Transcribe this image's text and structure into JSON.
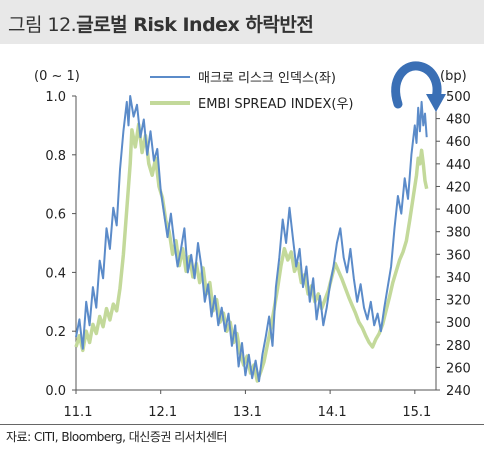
{
  "header": {
    "title_prefix": "그림 12.",
    "title_main": "글로벌 Risk Index 하락반전"
  },
  "source": "자료: CITI, Bloomberg, 대신증권 리서치센터",
  "colors": {
    "left_series": "#5b8bc9",
    "right_series": "#c3d99a",
    "arrow": "#3a6fb5"
  },
  "chart_data": {
    "type": "line",
    "left_unit": "(0 ~ 1)",
    "right_unit": "(bp)",
    "x_ticks": [
      "11.1",
      "12.1",
      "13.1",
      "14.1",
      "15.1"
    ],
    "x_range": [
      2011.0,
      2015.25
    ],
    "y_left": {
      "min": 0.0,
      "max": 1.0,
      "ticks": [
        "0.0",
        "0.2",
        "0.4",
        "0.6",
        "0.8",
        "1.0"
      ]
    },
    "y_right": {
      "min": 240,
      "max": 500,
      "ticks": [
        "240",
        "260",
        "280",
        "300",
        "320",
        "340",
        "360",
        "380",
        "400",
        "420",
        "440",
        "460",
        "480",
        "500"
      ]
    },
    "grid": false,
    "legend_position": "top",
    "annotation": "curved arrow pointing downward at top-right",
    "series": [
      {
        "name": "매크로 리스크 인덱스(좌)",
        "axis": "left",
        "points": [
          [
            2011.0,
            0.18
          ],
          [
            2011.04,
            0.24
          ],
          [
            2011.08,
            0.14
          ],
          [
            2011.12,
            0.3
          ],
          [
            2011.16,
            0.22
          ],
          [
            2011.2,
            0.35
          ],
          [
            2011.24,
            0.28
          ],
          [
            2011.28,
            0.44
          ],
          [
            2011.32,
            0.38
          ],
          [
            2011.36,
            0.55
          ],
          [
            2011.4,
            0.48
          ],
          [
            2011.44,
            0.62
          ],
          [
            2011.48,
            0.56
          ],
          [
            2011.52,
            0.75
          ],
          [
            2011.56,
            0.88
          ],
          [
            2011.6,
            0.98
          ],
          [
            2011.62,
            0.9
          ],
          [
            2011.64,
            1.0
          ],
          [
            2011.68,
            0.93
          ],
          [
            2011.72,
            0.97
          ],
          [
            2011.76,
            0.86
          ],
          [
            2011.8,
            0.92
          ],
          [
            2011.84,
            0.8
          ],
          [
            2011.88,
            0.88
          ],
          [
            2011.92,
            0.78
          ],
          [
            2011.96,
            0.82
          ],
          [
            2012.0,
            0.68
          ],
          [
            2012.04,
            0.6
          ],
          [
            2012.08,
            0.52
          ],
          [
            2012.12,
            0.6
          ],
          [
            2012.16,
            0.5
          ],
          [
            2012.2,
            0.42
          ],
          [
            2012.24,
            0.48
          ],
          [
            2012.28,
            0.55
          ],
          [
            2012.32,
            0.4
          ],
          [
            2012.36,
            0.46
          ],
          [
            2012.4,
            0.38
          ],
          [
            2012.44,
            0.5
          ],
          [
            2012.48,
            0.42
          ],
          [
            2012.52,
            0.3
          ],
          [
            2012.56,
            0.36
          ],
          [
            2012.6,
            0.25
          ],
          [
            2012.64,
            0.32
          ],
          [
            2012.68,
            0.22
          ],
          [
            2012.72,
            0.28
          ],
          [
            2012.76,
            0.2
          ],
          [
            2012.8,
            0.26
          ],
          [
            2012.84,
            0.15
          ],
          [
            2012.88,
            0.22
          ],
          [
            2012.92,
            0.08
          ],
          [
            2012.96,
            0.16
          ],
          [
            2013.0,
            0.05
          ],
          [
            2013.04,
            0.12
          ],
          [
            2013.08,
            0.04
          ],
          [
            2013.12,
            0.1
          ],
          [
            2013.16,
            0.03
          ],
          [
            2013.2,
            0.12
          ],
          [
            2013.24,
            0.18
          ],
          [
            2013.28,
            0.25
          ],
          [
            2013.32,
            0.15
          ],
          [
            2013.36,
            0.35
          ],
          [
            2013.4,
            0.45
          ],
          [
            2013.44,
            0.58
          ],
          [
            2013.48,
            0.5
          ],
          [
            2013.52,
            0.62
          ],
          [
            2013.56,
            0.52
          ],
          [
            2013.6,
            0.42
          ],
          [
            2013.64,
            0.48
          ],
          [
            2013.68,
            0.35
          ],
          [
            2013.72,
            0.42
          ],
          [
            2013.76,
            0.3
          ],
          [
            2013.8,
            0.38
          ],
          [
            2013.84,
            0.24
          ],
          [
            2013.88,
            0.32
          ],
          [
            2013.92,
            0.22
          ],
          [
            2013.96,
            0.28
          ],
          [
            2014.0,
            0.36
          ],
          [
            2014.04,
            0.42
          ],
          [
            2014.08,
            0.5
          ],
          [
            2014.12,
            0.55
          ],
          [
            2014.16,
            0.45
          ],
          [
            2014.2,
            0.4
          ],
          [
            2014.24,
            0.48
          ],
          [
            2014.28,
            0.38
          ],
          [
            2014.32,
            0.3
          ],
          [
            2014.36,
            0.36
          ],
          [
            2014.4,
            0.28
          ],
          [
            2014.44,
            0.24
          ],
          [
            2014.48,
            0.3
          ],
          [
            2014.52,
            0.22
          ],
          [
            2014.56,
            0.26
          ],
          [
            2014.6,
            0.2
          ],
          [
            2014.64,
            0.28
          ],
          [
            2014.68,
            0.35
          ],
          [
            2014.72,
            0.42
          ],
          [
            2014.76,
            0.55
          ],
          [
            2014.8,
            0.66
          ],
          [
            2014.84,
            0.6
          ],
          [
            2014.88,
            0.72
          ],
          [
            2014.92,
            0.65
          ],
          [
            2014.96,
            0.8
          ],
          [
            2015.0,
            0.9
          ],
          [
            2015.02,
            0.84
          ],
          [
            2015.04,
            0.96
          ],
          [
            2015.06,
            0.88
          ],
          [
            2015.08,
            0.98
          ],
          [
            2015.1,
            0.9
          ],
          [
            2015.12,
            0.94
          ],
          [
            2015.14,
            0.86
          ]
        ]
      },
      {
        "name": "EMBI SPREAD INDEX(우)",
        "axis": "right",
        "points": [
          [
            2011.0,
            278
          ],
          [
            2011.04,
            288
          ],
          [
            2011.08,
            275
          ],
          [
            2011.12,
            292
          ],
          [
            2011.16,
            282
          ],
          [
            2011.2,
            298
          ],
          [
            2011.24,
            290
          ],
          [
            2011.28,
            305
          ],
          [
            2011.32,
            296
          ],
          [
            2011.36,
            312
          ],
          [
            2011.4,
            302
          ],
          [
            2011.44,
            316
          ],
          [
            2011.48,
            310
          ],
          [
            2011.52,
            330
          ],
          [
            2011.56,
            360
          ],
          [
            2011.6,
            400
          ],
          [
            2011.64,
            440
          ],
          [
            2011.66,
            470
          ],
          [
            2011.7,
            455
          ],
          [
            2011.74,
            475
          ],
          [
            2011.78,
            450
          ],
          [
            2011.82,
            465
          ],
          [
            2011.86,
            440
          ],
          [
            2011.9,
            430
          ],
          [
            2011.94,
            445
          ],
          [
            2011.98,
            420
          ],
          [
            2012.02,
            410
          ],
          [
            2012.06,
            390
          ],
          [
            2012.1,
            380
          ],
          [
            2012.14,
            360
          ],
          [
            2012.18,
            372
          ],
          [
            2012.22,
            350
          ],
          [
            2012.26,
            365
          ],
          [
            2012.3,
            345
          ],
          [
            2012.34,
            358
          ],
          [
            2012.38,
            340
          ],
          [
            2012.42,
            352
          ],
          [
            2012.46,
            335
          ],
          [
            2012.5,
            348
          ],
          [
            2012.54,
            325
          ],
          [
            2012.58,
            335
          ],
          [
            2012.62,
            310
          ],
          [
            2012.66,
            320
          ],
          [
            2012.7,
            300
          ],
          [
            2012.74,
            308
          ],
          [
            2012.78,
            292
          ],
          [
            2012.82,
            300
          ],
          [
            2012.86,
            282
          ],
          [
            2012.9,
            290
          ],
          [
            2012.94,
            272
          ],
          [
            2012.98,
            262
          ],
          [
            2013.02,
            270
          ],
          [
            2013.06,
            255
          ],
          [
            2013.1,
            262
          ],
          [
            2013.14,
            248
          ],
          [
            2013.18,
            256
          ],
          [
            2013.22,
            265
          ],
          [
            2013.26,
            280
          ],
          [
            2013.3,
            295
          ],
          [
            2013.34,
            312
          ],
          [
            2013.38,
            330
          ],
          [
            2013.42,
            350
          ],
          [
            2013.46,
            365
          ],
          [
            2013.5,
            355
          ],
          [
            2013.54,
            362
          ],
          [
            2013.58,
            345
          ],
          [
            2013.62,
            352
          ],
          [
            2013.66,
            335
          ],
          [
            2013.7,
            342
          ],
          [
            2013.74,
            325
          ],
          [
            2013.78,
            332
          ],
          [
            2013.82,
            318
          ],
          [
            2013.86,
            325
          ],
          [
            2013.9,
            312
          ],
          [
            2013.94,
            320
          ],
          [
            2013.98,
            328
          ],
          [
            2014.02,
            340
          ],
          [
            2014.06,
            352
          ],
          [
            2014.1,
            345
          ],
          [
            2014.14,
            338
          ],
          [
            2014.18,
            330
          ],
          [
            2014.22,
            322
          ],
          [
            2014.26,
            315
          ],
          [
            2014.3,
            308
          ],
          [
            2014.34,
            300
          ],
          [
            2014.38,
            295
          ],
          [
            2014.42,
            288
          ],
          [
            2014.46,
            282
          ],
          [
            2014.5,
            278
          ],
          [
            2014.54,
            285
          ],
          [
            2014.58,
            290
          ],
          [
            2014.62,
            298
          ],
          [
            2014.66,
            310
          ],
          [
            2014.7,
            322
          ],
          [
            2014.74,
            335
          ],
          [
            2014.78,
            345
          ],
          [
            2014.82,
            355
          ],
          [
            2014.86,
            362
          ],
          [
            2014.9,
            372
          ],
          [
            2014.94,
            390
          ],
          [
            2014.98,
            410
          ],
          [
            2015.02,
            430
          ],
          [
            2015.04,
            445
          ],
          [
            2015.06,
            440
          ],
          [
            2015.08,
            452
          ],
          [
            2015.1,
            440
          ],
          [
            2015.12,
            425
          ],
          [
            2015.14,
            418
          ]
        ]
      }
    ]
  }
}
